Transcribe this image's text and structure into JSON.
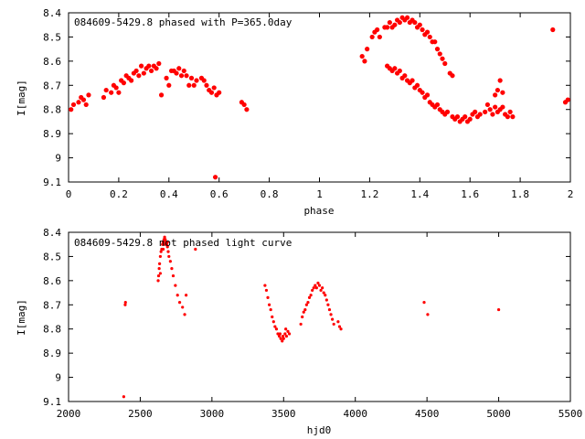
{
  "chart_data": [
    {
      "type": "scatter",
      "title": "084609-5429.8 phased with P=365.0day",
      "xlabel": "phase",
      "ylabel": "I[mag]",
      "xlim": [
        0,
        2
      ],
      "ylim": [
        8.4,
        9.1
      ],
      "y_inverted": true,
      "x_ticks": [
        "0",
        "0.2",
        "0.4",
        "0.6",
        "0.8",
        "1",
        "1.2",
        "1.4",
        "1.6",
        "1.8",
        "2"
      ],
      "x_tick_values": [
        0,
        0.2,
        0.4,
        0.6,
        0.8,
        1,
        1.2,
        1.4,
        1.6,
        1.8,
        2
      ],
      "y_ticks": [
        "8.4",
        "8.5",
        "8.6",
        "8.7",
        "8.8",
        "8.9",
        "9",
        "9.1"
      ],
      "y_tick_values": [
        8.4,
        8.5,
        8.6,
        8.7,
        8.8,
        8.9,
        9.0,
        9.1
      ],
      "marker": "filled-circle",
      "color": "#ff0000",
      "points": [
        [
          0.01,
          8.8
        ],
        [
          0.02,
          8.78
        ],
        [
          0.04,
          8.77
        ],
        [
          0.05,
          8.75
        ],
        [
          0.06,
          8.76
        ],
        [
          0.07,
          8.78
        ],
        [
          0.08,
          8.74
        ],
        [
          0.14,
          8.75
        ],
        [
          0.15,
          8.72
        ],
        [
          0.17,
          8.73
        ],
        [
          0.18,
          8.7
        ],
        [
          0.19,
          8.71
        ],
        [
          0.2,
          8.73
        ],
        [
          0.21,
          8.68
        ],
        [
          0.22,
          8.69
        ],
        [
          0.23,
          8.66
        ],
        [
          0.24,
          8.67
        ],
        [
          0.25,
          8.68
        ],
        [
          0.26,
          8.65
        ],
        [
          0.27,
          8.64
        ],
        [
          0.28,
          8.66
        ],
        [
          0.29,
          8.62
        ],
        [
          0.3,
          8.65
        ],
        [
          0.31,
          8.63
        ],
        [
          0.32,
          8.62
        ],
        [
          0.33,
          8.64
        ],
        [
          0.34,
          8.62
        ],
        [
          0.35,
          8.63
        ],
        [
          0.36,
          8.61
        ],
        [
          0.37,
          8.74
        ],
        [
          0.39,
          8.67
        ],
        [
          0.4,
          8.7
        ],
        [
          0.41,
          8.64
        ],
        [
          0.42,
          8.64
        ],
        [
          0.43,
          8.65
        ],
        [
          0.44,
          8.63
        ],
        [
          0.45,
          8.66
        ],
        [
          0.46,
          8.64
        ],
        [
          0.47,
          8.66
        ],
        [
          0.48,
          8.7
        ],
        [
          0.49,
          8.67
        ],
        [
          0.5,
          8.7
        ],
        [
          0.51,
          8.68
        ],
        [
          0.53,
          8.67
        ],
        [
          0.54,
          8.68
        ],
        [
          0.55,
          8.7
        ],
        [
          0.56,
          8.72
        ],
        [
          0.57,
          8.73
        ],
        [
          0.58,
          8.71
        ],
        [
          0.59,
          8.74
        ],
        [
          0.6,
          8.73
        ],
        [
          0.585,
          9.08
        ],
        [
          0.69,
          8.77
        ],
        [
          0.7,
          8.78
        ],
        [
          0.71,
          8.8
        ],
        [
          1.17,
          8.58
        ],
        [
          1.18,
          8.6
        ],
        [
          1.19,
          8.55
        ],
        [
          1.21,
          8.5
        ],
        [
          1.22,
          8.48
        ],
        [
          1.23,
          8.47
        ],
        [
          1.24,
          8.5
        ],
        [
          1.26,
          8.46
        ],
        [
          1.27,
          8.46
        ],
        [
          1.28,
          8.44
        ],
        [
          1.29,
          8.46
        ],
        [
          1.3,
          8.45
        ],
        [
          1.31,
          8.43
        ],
        [
          1.32,
          8.44
        ],
        [
          1.33,
          8.42
        ],
        [
          1.34,
          8.43
        ],
        [
          1.35,
          8.42
        ],
        [
          1.36,
          8.44
        ],
        [
          1.37,
          8.43
        ],
        [
          1.38,
          8.44
        ],
        [
          1.39,
          8.46
        ],
        [
          1.4,
          8.45
        ],
        [
          1.41,
          8.47
        ],
        [
          1.42,
          8.49
        ],
        [
          1.43,
          8.48
        ],
        [
          1.44,
          8.5
        ],
        [
          1.45,
          8.52
        ],
        [
          1.46,
          8.52
        ],
        [
          1.47,
          8.55
        ],
        [
          1.48,
          8.57
        ],
        [
          1.49,
          8.59
        ],
        [
          1.5,
          8.61
        ],
        [
          1.52,
          8.65
        ],
        [
          1.53,
          8.66
        ],
        [
          1.27,
          8.62
        ],
        [
          1.28,
          8.63
        ],
        [
          1.29,
          8.64
        ],
        [
          1.3,
          8.63
        ],
        [
          1.31,
          8.65
        ],
        [
          1.32,
          8.64
        ],
        [
          1.33,
          8.67
        ],
        [
          1.34,
          8.66
        ],
        [
          1.35,
          8.68
        ],
        [
          1.36,
          8.69
        ],
        [
          1.37,
          8.68
        ],
        [
          1.38,
          8.71
        ],
        [
          1.39,
          8.7
        ],
        [
          1.4,
          8.72
        ],
        [
          1.41,
          8.73
        ],
        [
          1.42,
          8.75
        ],
        [
          1.43,
          8.74
        ],
        [
          1.44,
          8.77
        ],
        [
          1.45,
          8.78
        ],
        [
          1.46,
          8.79
        ],
        [
          1.47,
          8.78
        ],
        [
          1.48,
          8.8
        ],
        [
          1.49,
          8.81
        ],
        [
          1.5,
          8.82
        ],
        [
          1.51,
          8.81
        ],
        [
          1.53,
          8.83
        ],
        [
          1.54,
          8.84
        ],
        [
          1.55,
          8.83
        ],
        [
          1.56,
          8.85
        ],
        [
          1.57,
          8.84
        ],
        [
          1.58,
          8.83
        ],
        [
          1.59,
          8.85
        ],
        [
          1.6,
          8.84
        ],
        [
          1.61,
          8.82
        ],
        [
          1.62,
          8.81
        ],
        [
          1.63,
          8.83
        ],
        [
          1.64,
          8.82
        ],
        [
          1.66,
          8.81
        ],
        [
          1.67,
          8.78
        ],
        [
          1.68,
          8.8
        ],
        [
          1.69,
          8.82
        ],
        [
          1.7,
          8.79
        ],
        [
          1.71,
          8.81
        ],
        [
          1.72,
          8.8
        ],
        [
          1.73,
          8.79
        ],
        [
          1.74,
          8.82
        ],
        [
          1.75,
          8.83
        ],
        [
          1.76,
          8.81
        ],
        [
          1.77,
          8.83
        ],
        [
          1.7,
          8.74
        ],
        [
          1.71,
          8.72
        ],
        [
          1.72,
          8.68
        ],
        [
          1.73,
          8.73
        ],
        [
          1.93,
          8.47
        ],
        [
          1.98,
          8.77
        ],
        [
          1.99,
          8.76
        ]
      ]
    },
    {
      "type": "scatter",
      "title": "084609-5429.8 not phased light curve",
      "xlabel": "hjd0",
      "ylabel": "I[mag]",
      "xlim": [
        2000,
        5500
      ],
      "ylim": [
        8.4,
        9.1
      ],
      "y_inverted": true,
      "x_ticks": [
        "2000",
        "2500",
        "3000",
        "3500",
        "4000",
        "4500",
        "5000",
        "5500"
      ],
      "x_tick_values": [
        2000,
        2500,
        3000,
        3500,
        4000,
        4500,
        5000,
        5500
      ],
      "y_ticks": [
        "8.4",
        "8.5",
        "8.6",
        "8.7",
        "8.8",
        "8.9",
        "9",
        "9.1"
      ],
      "y_tick_values": [
        8.4,
        8.5,
        8.6,
        8.7,
        8.8,
        8.9,
        9.0,
        9.1
      ],
      "marker": "small-dot",
      "color": "#ff0000",
      "points": [
        [
          2385,
          9.08
        ],
        [
          2395,
          8.7
        ],
        [
          2397,
          8.69
        ],
        [
          2625,
          8.6
        ],
        [
          2628,
          8.58
        ],
        [
          2632,
          8.55
        ],
        [
          2635,
          8.53
        ],
        [
          2640,
          8.5
        ],
        [
          2645,
          8.48
        ],
        [
          2650,
          8.47
        ],
        [
          2655,
          8.45
        ],
        [
          2660,
          8.44
        ],
        [
          2665,
          8.43
        ],
        [
          2670,
          8.42
        ],
        [
          2675,
          8.43
        ],
        [
          2680,
          8.44
        ],
        [
          2685,
          8.45
        ],
        [
          2690,
          8.46
        ],
        [
          2695,
          8.48
        ],
        [
          2700,
          8.5
        ],
        [
          2710,
          8.52
        ],
        [
          2720,
          8.55
        ],
        [
          2730,
          8.58
        ],
        [
          2745,
          8.62
        ],
        [
          2760,
          8.66
        ],
        [
          2775,
          8.69
        ],
        [
          2795,
          8.71
        ],
        [
          2810,
          8.74
        ],
        [
          2820,
          8.66
        ],
        [
          2885,
          8.47
        ],
        [
          2640,
          8.57
        ],
        [
          2660,
          8.47
        ],
        [
          2675,
          8.45
        ],
        [
          2690,
          8.44
        ],
        [
          3370,
          8.62
        ],
        [
          3380,
          8.64
        ],
        [
          3390,
          8.67
        ],
        [
          3400,
          8.7
        ],
        [
          3410,
          8.72
        ],
        [
          3420,
          8.75
        ],
        [
          3430,
          8.77
        ],
        [
          3440,
          8.79
        ],
        [
          3450,
          8.8
        ],
        [
          3460,
          8.82
        ],
        [
          3470,
          8.83
        ],
        [
          3480,
          8.84
        ],
        [
          3490,
          8.85
        ],
        [
          3500,
          8.84
        ],
        [
          3510,
          8.82
        ],
        [
          3520,
          8.83
        ],
        [
          3530,
          8.81
        ],
        [
          3540,
          8.82
        ],
        [
          3475,
          8.82
        ],
        [
          3495,
          8.83
        ],
        [
          3515,
          8.8
        ],
        [
          3620,
          8.78
        ],
        [
          3630,
          8.75
        ],
        [
          3640,
          8.73
        ],
        [
          3650,
          8.72
        ],
        [
          3660,
          8.7
        ],
        [
          3670,
          8.69
        ],
        [
          3680,
          8.67
        ],
        [
          3690,
          8.66
        ],
        [
          3700,
          8.64
        ],
        [
          3710,
          8.63
        ],
        [
          3720,
          8.62
        ],
        [
          3730,
          8.63
        ],
        [
          3740,
          8.61
        ],
        [
          3750,
          8.62
        ],
        [
          3760,
          8.64
        ],
        [
          3770,
          8.63
        ],
        [
          3780,
          8.65
        ],
        [
          3790,
          8.66
        ],
        [
          3800,
          8.68
        ],
        [
          3810,
          8.7
        ],
        [
          3820,
          8.72
        ],
        [
          3830,
          8.74
        ],
        [
          3840,
          8.76
        ],
        [
          3850,
          8.78
        ],
        [
          3880,
          8.77
        ],
        [
          3890,
          8.79
        ],
        [
          3900,
          8.8
        ],
        [
          4480,
          8.69
        ],
        [
          4505,
          8.74
        ],
        [
          5000,
          8.72
        ]
      ]
    }
  ]
}
